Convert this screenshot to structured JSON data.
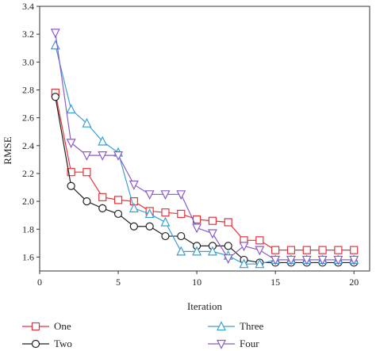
{
  "chart_data": {
    "type": "line",
    "xlabel": "Iteration",
    "ylabel": "RMSE",
    "xlim": [
      0,
      21
    ],
    "ylim": [
      1.5,
      3.4
    ],
    "xticks": [
      0,
      5,
      10,
      15,
      20
    ],
    "yticks": [
      1.6,
      1.8,
      2.0,
      2.2,
      2.4,
      2.6,
      2.8,
      3.0,
      3.2,
      3.4
    ],
    "x": [
      1,
      2,
      3,
      4,
      5,
      6,
      7,
      8,
      9,
      10,
      11,
      12,
      13,
      14,
      15,
      16,
      17,
      18,
      19,
      20
    ],
    "legend_position": "bottom",
    "series": [
      {
        "name": "One",
        "color": "#e8323a",
        "marker": "square",
        "values": [
          2.78,
          2.21,
          2.21,
          2.03,
          2.01,
          2.0,
          1.93,
          1.92,
          1.91,
          1.87,
          1.86,
          1.85,
          1.72,
          1.72,
          1.65,
          1.65,
          1.65,
          1.65,
          1.65,
          1.65
        ]
      },
      {
        "name": "Two",
        "color": "#222222",
        "marker": "circle",
        "values": [
          2.75,
          2.11,
          2.0,
          1.95,
          1.91,
          1.82,
          1.82,
          1.75,
          1.75,
          1.68,
          1.68,
          1.68,
          1.58,
          1.56,
          1.56,
          1.56,
          1.56,
          1.56,
          1.56,
          1.56
        ]
      },
      {
        "name": "Three",
        "color": "#3a9fd8",
        "marker": "triangle-up",
        "values": [
          3.12,
          2.66,
          2.56,
          2.43,
          2.35,
          1.95,
          1.91,
          1.85,
          1.64,
          1.64,
          1.64,
          1.61,
          1.55,
          1.55,
          1.58,
          1.58,
          1.58,
          1.58,
          1.58,
          1.58
        ]
      },
      {
        "name": "Four",
        "color": "#8a5cc8",
        "marker": "triangle-down",
        "values": [
          3.21,
          2.42,
          2.33,
          2.33,
          2.33,
          2.12,
          2.05,
          2.05,
          2.05,
          1.81,
          1.77,
          1.59,
          1.68,
          1.65,
          1.58,
          1.58,
          1.58,
          1.58,
          1.58,
          1.58
        ]
      }
    ]
  }
}
